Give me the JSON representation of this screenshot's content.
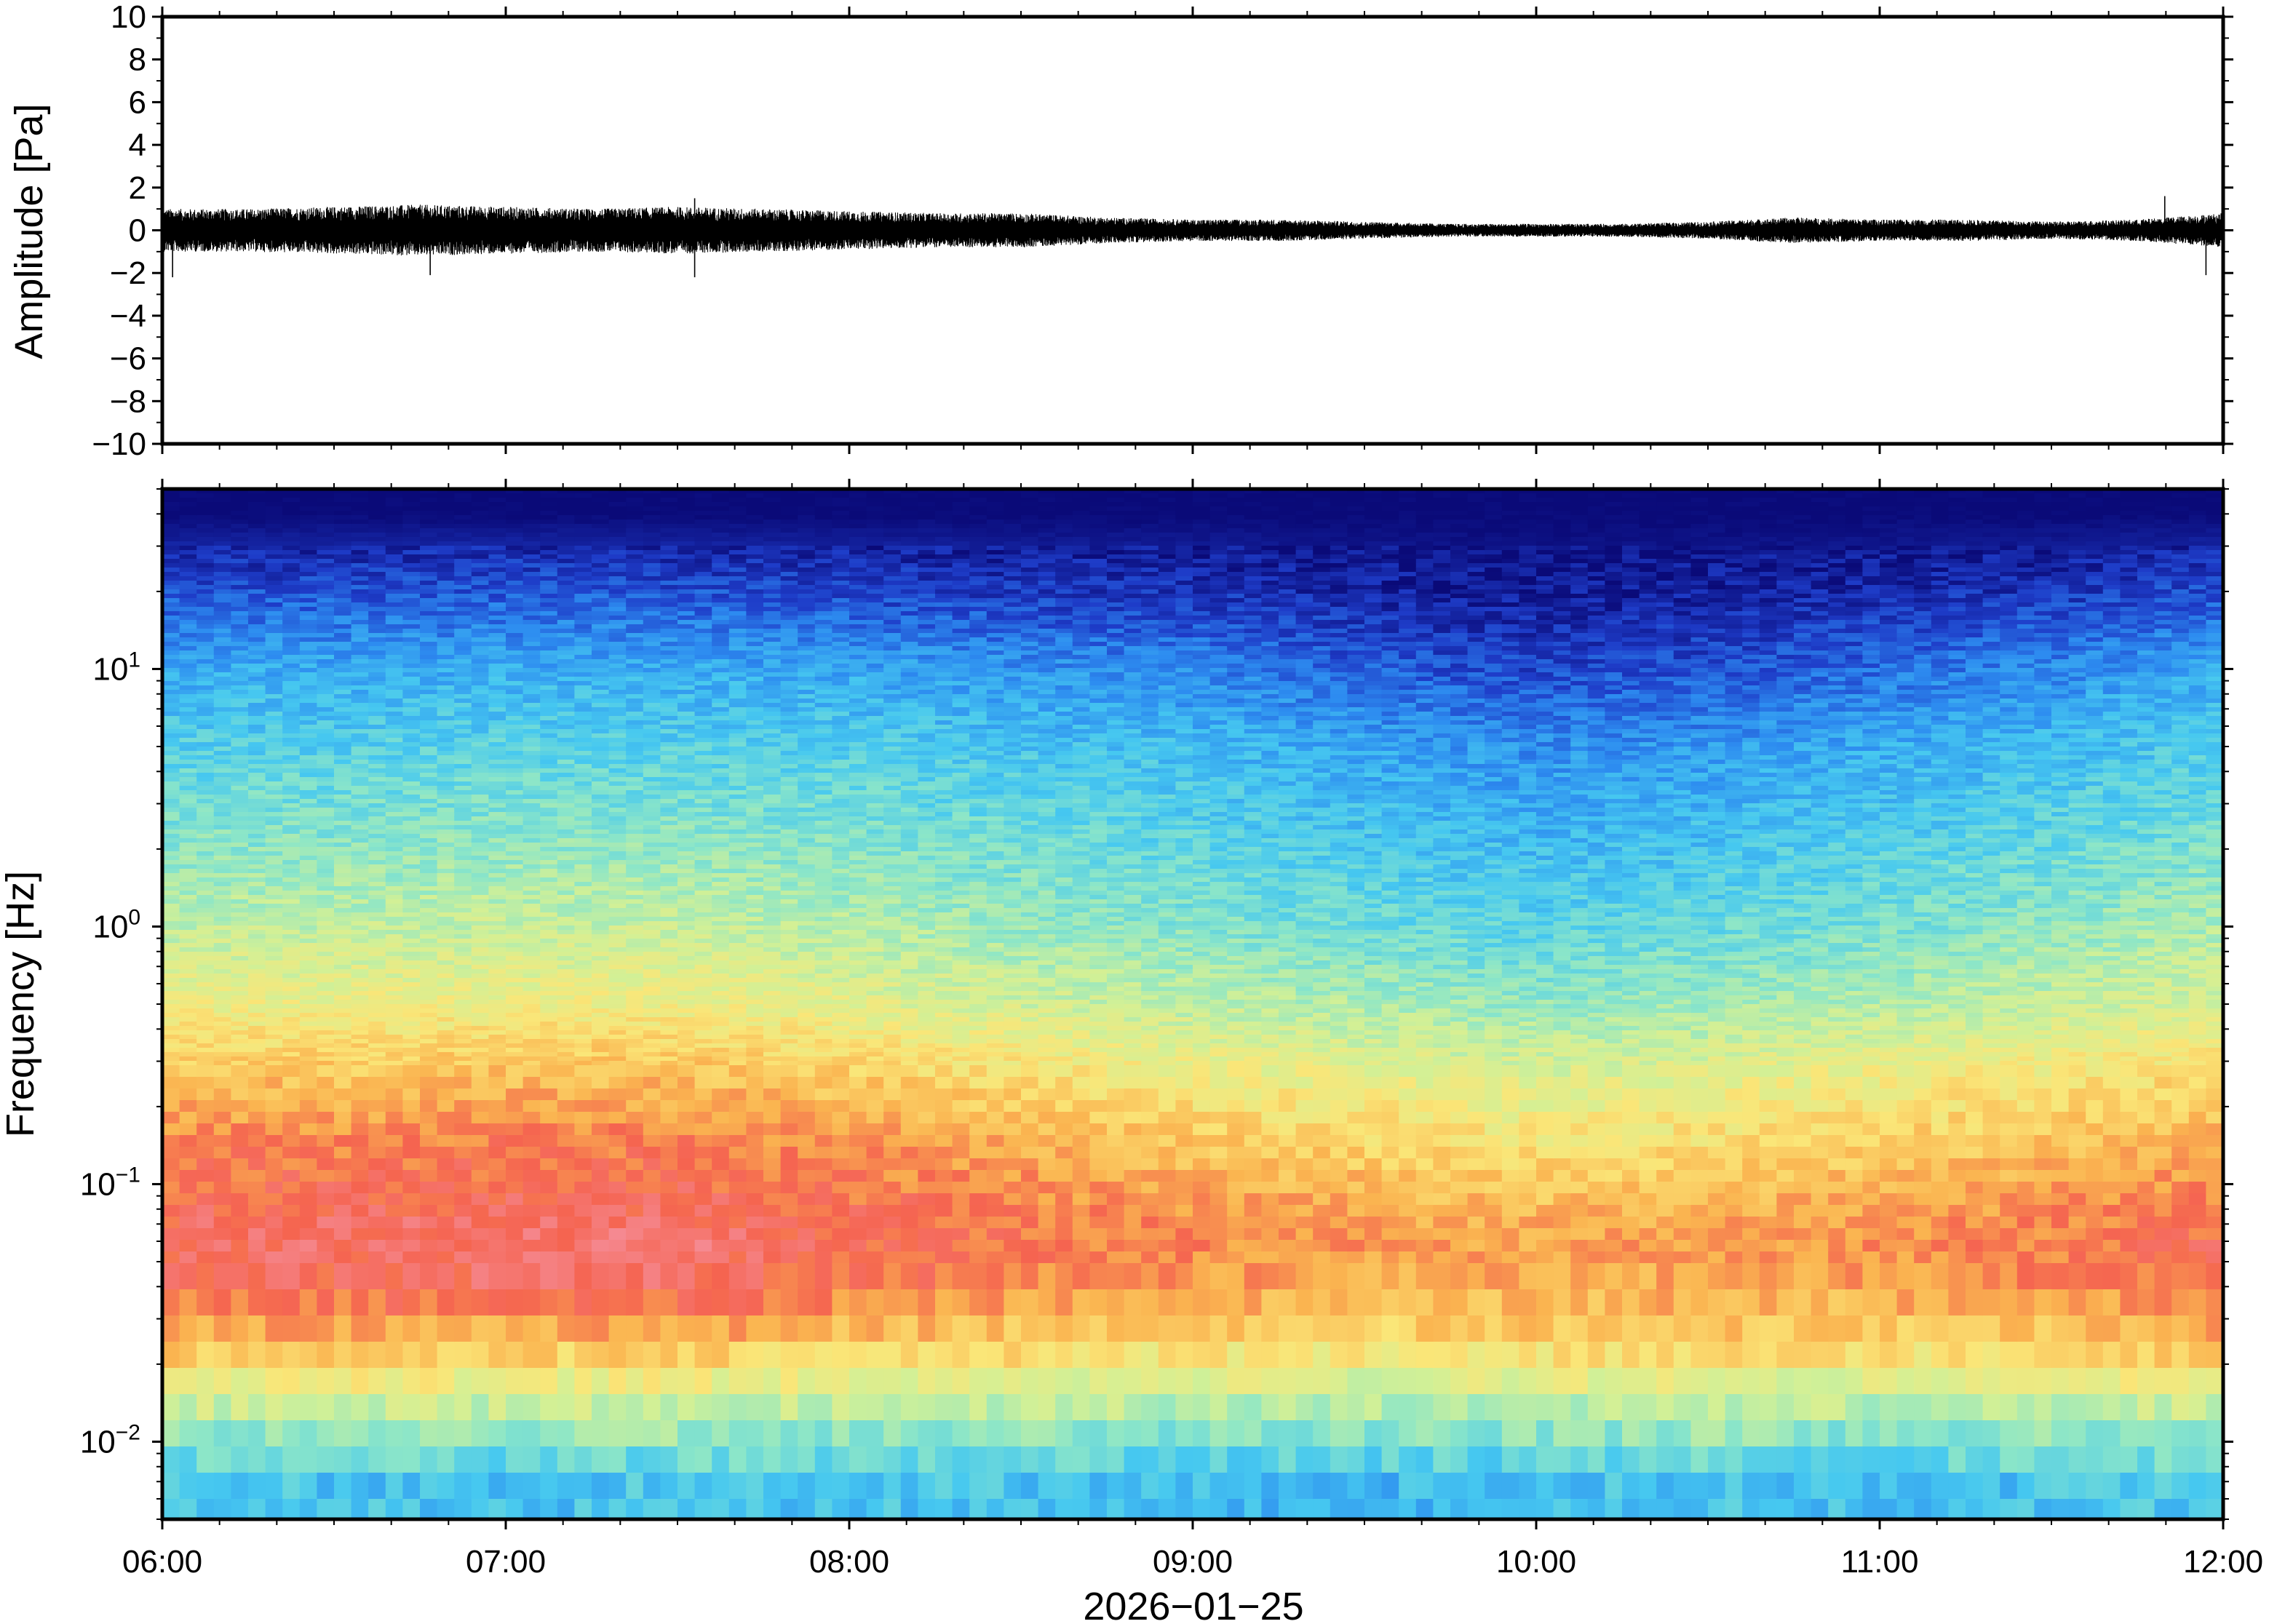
{
  "chart_data": [
    {
      "type": "line",
      "name": "waveform",
      "ylabel": "Amplitude [Pa]",
      "ylim": [
        -10,
        10
      ],
      "yticks": [
        10,
        8,
        6,
        4,
        2,
        0,
        -2,
        -4,
        -6,
        -8,
        -10
      ],
      "ytick_labels": [
        "10",
        "8",
        "6",
        "4",
        "2",
        "0",
        "−2",
        "−4",
        "−6",
        "−8",
        "−10"
      ],
      "xlim": [
        "06:00",
        "12:00"
      ],
      "x_hours": [
        6.0,
        6.25,
        6.5,
        6.75,
        7.0,
        7.25,
        7.5,
        7.75,
        8.0,
        8.25,
        8.5,
        8.75,
        9.0,
        9.25,
        9.5,
        9.75,
        10.0,
        10.25,
        10.5,
        10.75,
        11.0,
        11.25,
        11.5,
        11.75,
        12.0
      ],
      "amplitude_envelope_pa": [
        1.0,
        1.0,
        1.1,
        1.2,
        1.1,
        1.0,
        1.1,
        1.0,
        0.9,
        0.8,
        0.8,
        0.6,
        0.5,
        0.5,
        0.4,
        0.3,
        0.3,
        0.3,
        0.4,
        0.6,
        0.5,
        0.5,
        0.4,
        0.5,
        0.8
      ],
      "peaks": [
        {
          "x_hour": 6.03,
          "y": -2.2
        },
        {
          "x_hour": 6.78,
          "y": -2.1
        },
        {
          "x_hour": 7.55,
          "y": 1.5
        },
        {
          "x_hour": 7.55,
          "y": -2.2
        },
        {
          "x_hour": 11.83,
          "y": 1.6
        },
        {
          "x_hour": 11.95,
          "y": -2.1
        }
      ]
    },
    {
      "type": "heatmap",
      "name": "spectrogram",
      "ylabel": "Frequency [Hz]",
      "xlabel": "2026−01−25",
      "ylim": [
        0.005,
        50
      ],
      "yscale": "log",
      "ytick_labels": [
        {
          "base": "10",
          "exp": "1",
          "value": 10
        },
        {
          "base": "10",
          "exp": "0",
          "value": 1
        },
        {
          "base": "10",
          "exp": "−1",
          "value": 0.1
        },
        {
          "base": "10",
          "exp": "−2",
          "value": 0.01
        }
      ],
      "xticks": [
        "06:00",
        "07:00",
        "08:00",
        "09:00",
        "10:00",
        "11:00",
        "12:00"
      ],
      "colormap": [
        "#0a0a78",
        "#1e3cc8",
        "#2d8cf0",
        "#46c8f0",
        "#8ce6c8",
        "#d2f096",
        "#fae678",
        "#fab450",
        "#f56450",
        "#f58c96"
      ],
      "x_hours": [
        6.0,
        6.5,
        7.0,
        7.5,
        8.0,
        8.5,
        9.0,
        9.5,
        10.0,
        10.5,
        11.0,
        11.5,
        12.0
      ],
      "frequency_hz": [
        40,
        20,
        10,
        5,
        2,
        1,
        0.5,
        0.3,
        0.15,
        0.1,
        0.06,
        0.04,
        0.025,
        0.015,
        0.01,
        0.007
      ],
      "power_level": [
        [
          0.0,
          0.0,
          0.0,
          0.0,
          0.0,
          0.0,
          0.0,
          0.0,
          0.0,
          0.0,
          0.0,
          0.0,
          0.0
        ],
        [
          0.14,
          0.14,
          0.15,
          0.14,
          0.12,
          0.1,
          0.09,
          0.06,
          0.04,
          0.05,
          0.07,
          0.09,
          0.14
        ],
        [
          0.28,
          0.28,
          0.28,
          0.28,
          0.27,
          0.24,
          0.22,
          0.16,
          0.12,
          0.14,
          0.18,
          0.22,
          0.28
        ],
        [
          0.36,
          0.36,
          0.37,
          0.36,
          0.35,
          0.33,
          0.31,
          0.27,
          0.23,
          0.25,
          0.28,
          0.31,
          0.35
        ],
        [
          0.45,
          0.45,
          0.46,
          0.46,
          0.44,
          0.41,
          0.38,
          0.34,
          0.31,
          0.33,
          0.36,
          0.39,
          0.43
        ],
        [
          0.53,
          0.53,
          0.54,
          0.54,
          0.51,
          0.47,
          0.44,
          0.4,
          0.37,
          0.39,
          0.42,
          0.46,
          0.5
        ],
        [
          0.62,
          0.62,
          0.63,
          0.63,
          0.6,
          0.56,
          0.53,
          0.5,
          0.46,
          0.48,
          0.51,
          0.54,
          0.58
        ],
        [
          0.72,
          0.72,
          0.73,
          0.73,
          0.7,
          0.66,
          0.62,
          0.59,
          0.56,
          0.58,
          0.61,
          0.64,
          0.68
        ],
        [
          0.84,
          0.84,
          0.85,
          0.85,
          0.82,
          0.77,
          0.73,
          0.7,
          0.66,
          0.68,
          0.71,
          0.74,
          0.78
        ],
        [
          0.88,
          0.88,
          0.89,
          0.89,
          0.86,
          0.83,
          0.79,
          0.76,
          0.73,
          0.75,
          0.77,
          0.8,
          0.84
        ],
        [
          0.92,
          0.93,
          0.94,
          0.95,
          0.9,
          0.87,
          0.84,
          0.82,
          0.8,
          0.81,
          0.83,
          0.86,
          0.89
        ],
        [
          0.89,
          0.9,
          0.91,
          0.92,
          0.87,
          0.84,
          0.81,
          0.79,
          0.78,
          0.79,
          0.8,
          0.83,
          0.87
        ],
        [
          0.78,
          0.77,
          0.76,
          0.77,
          0.74,
          0.73,
          0.71,
          0.7,
          0.72,
          0.73,
          0.71,
          0.73,
          0.77
        ],
        [
          0.58,
          0.58,
          0.57,
          0.58,
          0.56,
          0.56,
          0.54,
          0.53,
          0.55,
          0.56,
          0.54,
          0.56,
          0.59
        ],
        [
          0.44,
          0.44,
          0.43,
          0.45,
          0.43,
          0.44,
          0.42,
          0.41,
          0.43,
          0.44,
          0.42,
          0.44,
          0.45
        ],
        [
          0.34,
          0.33,
          0.32,
          0.34,
          0.33,
          0.33,
          0.31,
          0.3,
          0.32,
          0.33,
          0.32,
          0.33,
          0.35
        ]
      ]
    }
  ]
}
